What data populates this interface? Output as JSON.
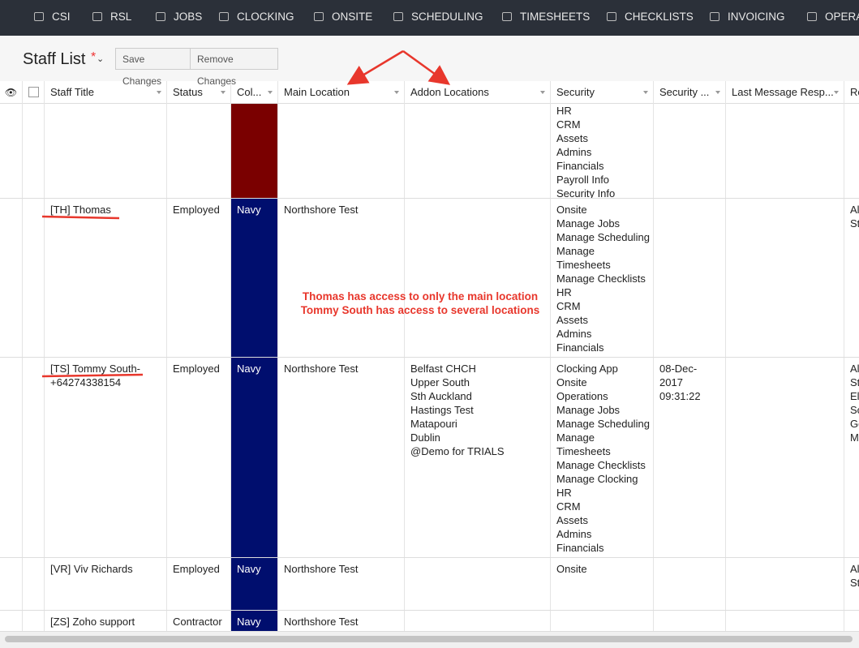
{
  "nav": {
    "items": [
      "CSI",
      "RSL",
      "JOBS",
      "CLOCKING",
      "ONSITE",
      "SCHEDULING",
      "TIMESHEETS",
      "CHECKLISTS",
      "INVOICING",
      "OPERA"
    ]
  },
  "header": {
    "title": "Staff List",
    "required": "*",
    "buttons": [
      "Save Changes",
      "Remove Changes"
    ]
  },
  "table": {
    "columns": [
      "Staff Title",
      "Status",
      "Col...",
      "Main Location",
      "Addon Locations",
      "Security",
      "Security ...",
      "Last Message Resp...",
      "Ro"
    ],
    "rows": [
      {
        "color": {
          "fill": "#7a0000"
        },
        "security": [
          "HR",
          "CRM",
          "Assets",
          "Admins",
          "Financials",
          "Payroll Info",
          "Security Info"
        ]
      },
      {
        "title": [
          "[TH] Thomas"
        ],
        "status": "Employed",
        "color": {
          "fill": "#000e6e",
          "label": "Navy"
        },
        "main": "Northshore Test",
        "security": [
          "Onsite",
          "Manage Jobs",
          "Manage Scheduling",
          "Manage",
          "Timesheets",
          "Manage Checklists",
          "HR",
          "CRM",
          "Assets",
          "Admins",
          "Financials"
        ],
        "role": [
          "Al",
          "St"
        ]
      },
      {
        "title": [
          "[TS] Tommy South-",
          "+64274338154"
        ],
        "status": "Employed",
        "color": {
          "fill": "#000e6e",
          "label": "Navy"
        },
        "main": "Northshore Test",
        "addon": [
          "Belfast CHCH",
          "Upper South",
          "Sth Auckland",
          "Hastings Test",
          "Matapouri",
          "Dublin",
          "@Demo for TRIALS"
        ],
        "security": [
          "Clocking App",
          "Onsite",
          "Operations",
          "Manage Jobs",
          "Manage Scheduling",
          "Manage",
          "Timesheets",
          "Manage Checklists",
          "Manage Clocking",
          "HR",
          "CRM",
          "Assets",
          "Admins",
          "Financials"
        ],
        "security_time": [
          "08-Dec-",
          "2017",
          "09:31:22"
        ],
        "role": [
          "Al",
          "St",
          "El",
          "Sc",
          "Ge",
          "M"
        ]
      },
      {
        "title": [
          "[VR] Viv Richards"
        ],
        "status": "Employed",
        "color": {
          "fill": "#000e6e",
          "label": "Navy"
        },
        "main": "Northshore Test",
        "security": [
          "Onsite"
        ],
        "role": [
          "Al",
          "St"
        ]
      },
      {
        "title": [
          "[ZS] Zoho support"
        ],
        "status": "Contractor",
        "color": {
          "fill": "#000e6e",
          "label": "Navy"
        },
        "main": "Northshore Test"
      }
    ]
  },
  "annotation": {
    "lines": [
      "Thomas has access to only the main location",
      "Tommy South has access to several locations"
    ]
  }
}
